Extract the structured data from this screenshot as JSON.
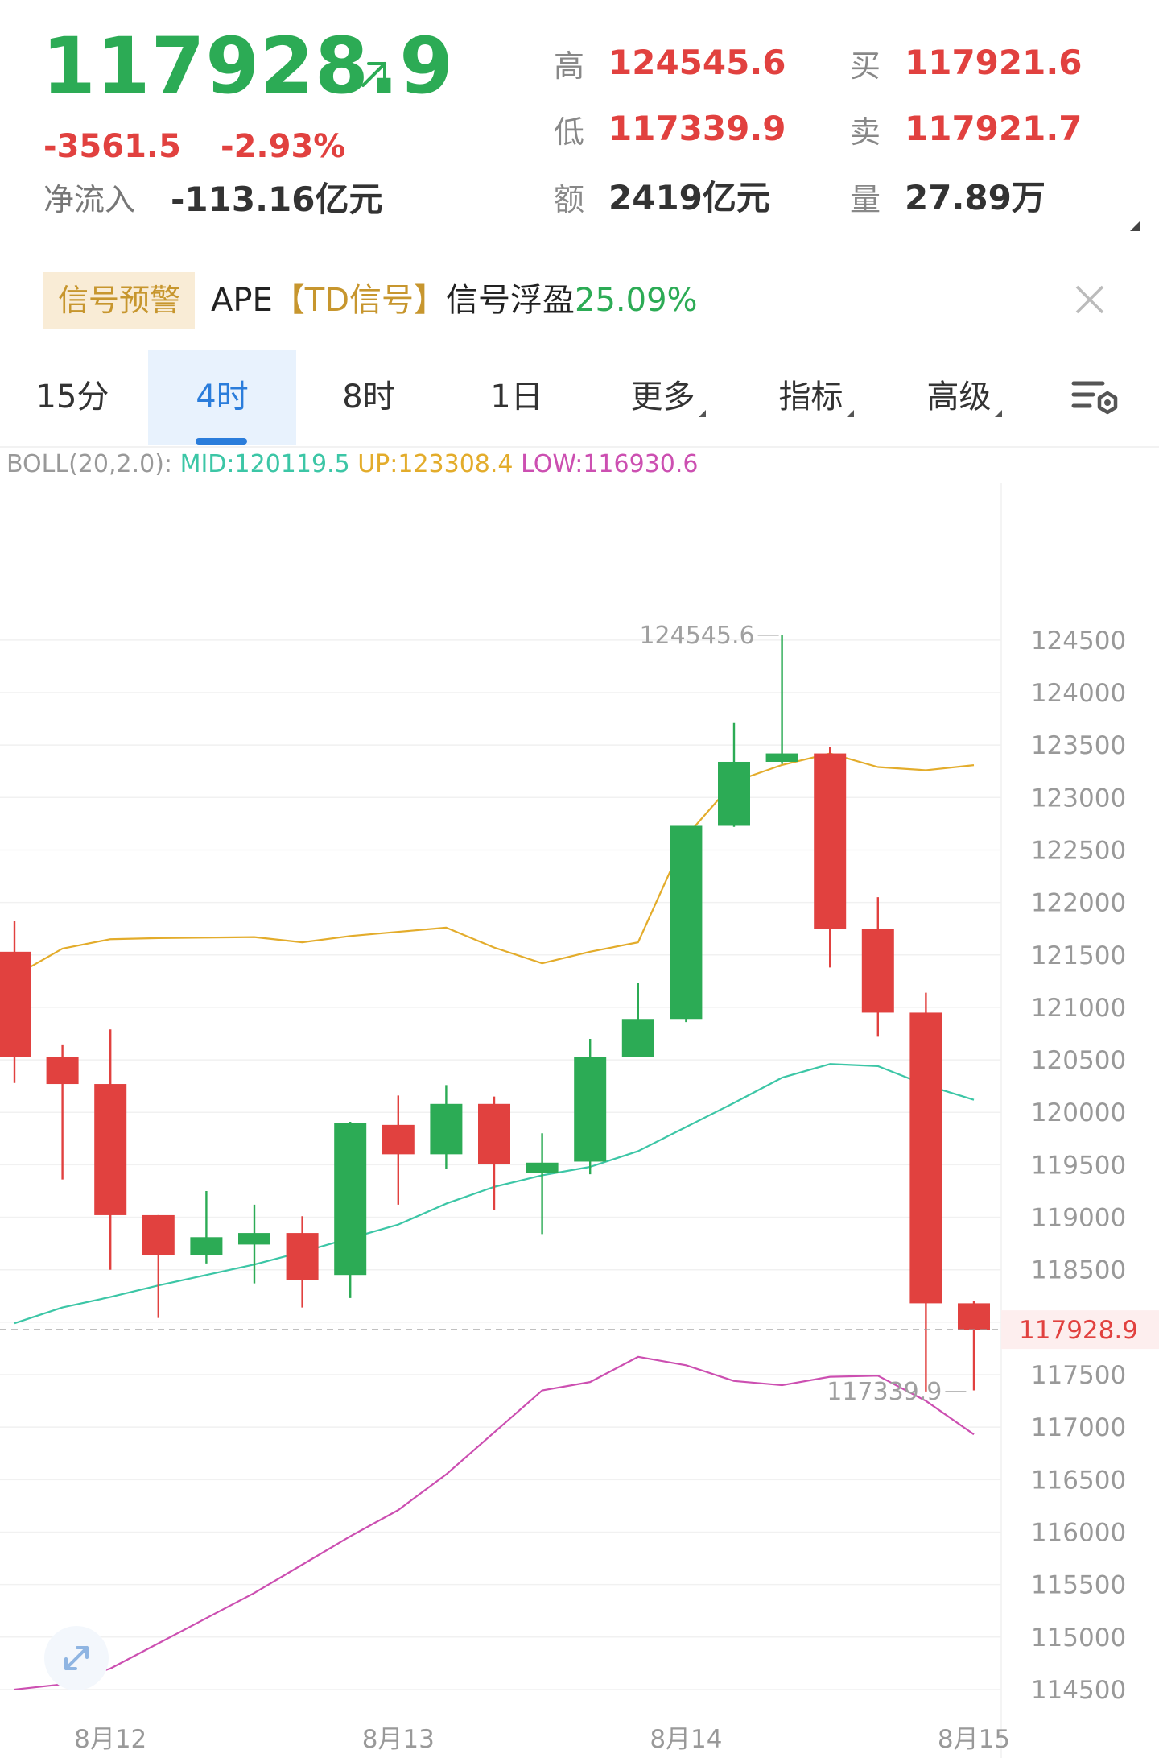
{
  "quote": {
    "last_price": "117928.9",
    "change": "-3561.5",
    "change_pct": "-2.93%",
    "netflow_label": "净流入",
    "netflow_value": "-113.16亿元",
    "stats": [
      {
        "label": "高",
        "value": "124545.6",
        "style": "red"
      },
      {
        "label": "买",
        "value": "117921.6",
        "style": "red"
      },
      {
        "label": "低",
        "value": "117339.9",
        "style": "red"
      },
      {
        "label": "卖",
        "value": "117921.7",
        "style": "red"
      },
      {
        "label": "额",
        "value": "2419亿元",
        "style": "dark"
      },
      {
        "label": "量",
        "value": "27.89万",
        "style": "dark"
      }
    ]
  },
  "signal": {
    "tag": "信号预警",
    "symbol": "APE",
    "indicator": "【TD信号】",
    "text": "信号浮盈",
    "pct": "25.09%"
  },
  "tabs": [
    {
      "label": "15分",
      "active": false,
      "dropdown": false
    },
    {
      "label": "4时",
      "active": true,
      "dropdown": false
    },
    {
      "label": "8时",
      "active": false,
      "dropdown": false
    },
    {
      "label": "1日",
      "active": false,
      "dropdown": false
    },
    {
      "label": "更多",
      "active": false,
      "dropdown": true
    },
    {
      "label": "指标",
      "active": false,
      "dropdown": true
    },
    {
      "label": "高级",
      "active": false,
      "dropdown": true
    }
  ],
  "boll": {
    "name": "BOLL(20,2.0):",
    "mid_label": "MID:120119.5",
    "up_label": "UP:123308.4",
    "low_label": "LOW:116930.6"
  },
  "colors": {
    "up": "#2cab55",
    "down": "#e1413f",
    "mid": "#3cc6a6",
    "upper": "#e3ac2b",
    "lower": "#cc4fb1",
    "accent": "#2b7ddb"
  },
  "icons": {
    "price_arrow": "arrow-up-right-icon",
    "close": "close-icon",
    "settings": "chart-settings-icon",
    "expand": "expand-icon"
  },
  "chart_data": {
    "type": "candlestick",
    "y_ticks": [
      124500,
      124000,
      123500,
      123000,
      122500,
      122000,
      121500,
      121000,
      120500,
      120000,
      119500,
      119000,
      118500,
      118000,
      117500,
      117000,
      116500,
      116000,
      115500,
      115000,
      114500
    ],
    "y_tick_labels": [
      "124500",
      "124000",
      "123500",
      "123000",
      "122500",
      "122000",
      "121500",
      "121000",
      "120500",
      "120000",
      "119500",
      "119000",
      "118500",
      "118000",
      "117500",
      "117000",
      "116500",
      "116000",
      "115500",
      "115000",
      "114500"
    ],
    "ylim": [
      114300,
      125550
    ],
    "x_labels": [
      "8月12",
      "8月13",
      "8月14",
      "8月15"
    ],
    "x_label_bar_index": [
      2,
      8,
      14,
      20
    ],
    "current_price": 117928.9,
    "current_price_label": "117928.9",
    "high_label": "124545.6",
    "low_label": "117339.9",
    "high_bar_index": 16,
    "low_bar_index": 19,
    "candles": [
      {
        "open": 121530,
        "high": 121820,
        "low": 120280,
        "close": 120530
      },
      {
        "open": 120530,
        "high": 120640,
        "low": 119360,
        "close": 120270
      },
      {
        "open": 120270,
        "high": 120790,
        "low": 118500,
        "close": 119020
      },
      {
        "open": 119020,
        "high": 119020,
        "low": 118040,
        "close": 118640
      },
      {
        "open": 118640,
        "high": 119250,
        "low": 118560,
        "close": 118810
      },
      {
        "open": 118740,
        "high": 119120,
        "low": 118370,
        "close": 118850
      },
      {
        "open": 118850,
        "high": 119010,
        "low": 118140,
        "close": 118400
      },
      {
        "open": 118450,
        "high": 119910,
        "low": 118230,
        "close": 119900
      },
      {
        "open": 119880,
        "high": 120160,
        "low": 119120,
        "close": 119600
      },
      {
        "open": 119600,
        "high": 120260,
        "low": 119460,
        "close": 120080
      },
      {
        "open": 120080,
        "high": 120150,
        "low": 119070,
        "close": 119510
      },
      {
        "open": 119420,
        "high": 119800,
        "low": 118840,
        "close": 119520
      },
      {
        "open": 119530,
        "high": 120700,
        "low": 119410,
        "close": 120530
      },
      {
        "open": 120530,
        "high": 121230,
        "low": 120600,
        "close": 120890
      },
      {
        "open": 120890,
        "high": 122700,
        "low": 120860,
        "close": 122730
      },
      {
        "open": 122730,
        "high": 123710,
        "low": 122720,
        "close": 123340
      },
      {
        "open": 123340,
        "high": 124545.6,
        "low": 123320,
        "close": 123420
      },
      {
        "open": 123420,
        "high": 123480,
        "low": 121380,
        "close": 121750
      },
      {
        "open": 121750,
        "high": 122050,
        "low": 120720,
        "close": 120950
      },
      {
        "open": 120950,
        "high": 121140,
        "low": 117339.9,
        "close": 118180
      },
      {
        "open": 118180,
        "high": 118200,
        "low": 117350,
        "close": 117928.9
      }
    ],
    "boll_upper": [
      121300,
      121560,
      121650,
      121660,
      121665,
      121670,
      121620,
      121680,
      121720,
      121760,
      121570,
      121420,
      121530,
      121620,
      122630,
      123150,
      123310,
      123420,
      123290,
      123260,
      123308.4
    ],
    "boll_mid": [
      117990,
      118140,
      118240,
      118350,
      118450,
      118550,
      118670,
      118800,
      118930,
      119130,
      119290,
      119400,
      119480,
      119630,
      119860,
      120090,
      120330,
      120460,
      120440,
      120260,
      120119.5
    ],
    "boll_lower": [
      114500,
      114550,
      114700,
      114940,
      115180,
      115420,
      115690,
      115960,
      116210,
      116550,
      116950,
      117350,
      117430,
      117670,
      117590,
      117440,
      117400,
      117480,
      117490,
      117250,
      116930.6
    ]
  }
}
